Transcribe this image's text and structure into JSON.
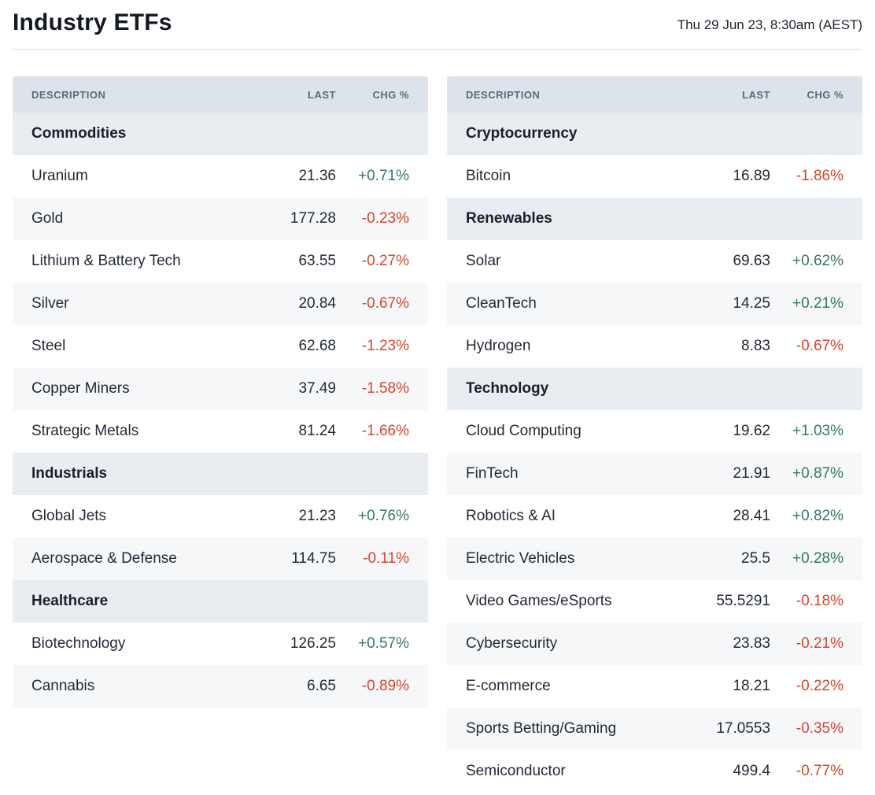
{
  "page": {
    "title": "Industry ETFs",
    "timestamp": "Thu 29 Jun 23, 8:30am (AEST)"
  },
  "colors": {
    "positive": "#347a58",
    "negative": "#d4452c",
    "header_bg": "#dde3ea",
    "section_bg": "#e9edf1",
    "row_alt_bg": "#f5f7f9"
  },
  "chart_data": [
    {
      "type": "table",
      "columns": [
        "DESCRIPTION",
        "LAST",
        "CHG %"
      ],
      "sections": [
        {
          "title": "Commodities",
          "rows": [
            {
              "description": "Uranium",
              "last": "21.36",
              "chg": "+0.71%"
            },
            {
              "description": "Gold",
              "last": "177.28",
              "chg": "-0.23%"
            },
            {
              "description": "Lithium & Battery Tech",
              "last": "63.55",
              "chg": "-0.27%"
            },
            {
              "description": "Silver",
              "last": "20.84",
              "chg": "-0.67%"
            },
            {
              "description": "Steel",
              "last": "62.68",
              "chg": "-1.23%"
            },
            {
              "description": "Copper Miners",
              "last": "37.49",
              "chg": "-1.58%"
            },
            {
              "description": "Strategic Metals",
              "last": "81.24",
              "chg": "-1.66%"
            }
          ]
        },
        {
          "title": "Industrials",
          "rows": [
            {
              "description": "Global Jets",
              "last": "21.23",
              "chg": "+0.76%"
            },
            {
              "description": "Aerospace & Defense",
              "last": "114.75",
              "chg": "-0.11%"
            }
          ]
        },
        {
          "title": "Healthcare",
          "rows": [
            {
              "description": "Biotechnology",
              "last": "126.25",
              "chg": "+0.57%"
            },
            {
              "description": "Cannabis",
              "last": "6.65",
              "chg": "-0.89%"
            }
          ]
        }
      ]
    },
    {
      "type": "table",
      "columns": [
        "DESCRIPTION",
        "LAST",
        "CHG %"
      ],
      "sections": [
        {
          "title": "Cryptocurrency",
          "rows": [
            {
              "description": "Bitcoin",
              "last": "16.89",
              "chg": "-1.86%"
            }
          ]
        },
        {
          "title": "Renewables",
          "rows": [
            {
              "description": "Solar",
              "last": "69.63",
              "chg": "+0.62%"
            },
            {
              "description": "CleanTech",
              "last": "14.25",
              "chg": "+0.21%"
            },
            {
              "description": "Hydrogen",
              "last": "8.83",
              "chg": "-0.67%"
            }
          ]
        },
        {
          "title": "Technology",
          "rows": [
            {
              "description": "Cloud Computing",
              "last": "19.62",
              "chg": "+1.03%"
            },
            {
              "description": "FinTech",
              "last": "21.91",
              "chg": "+0.87%"
            },
            {
              "description": "Robotics & AI",
              "last": "28.41",
              "chg": "+0.82%"
            },
            {
              "description": "Electric Vehicles",
              "last": "25.5",
              "chg": "+0.28%"
            },
            {
              "description": "Video Games/eSports",
              "last": "55.5291",
              "chg": "-0.18%"
            },
            {
              "description": "Cybersecurity",
              "last": "23.83",
              "chg": "-0.21%"
            },
            {
              "description": "E-commerce",
              "last": "18.21",
              "chg": "-0.22%"
            },
            {
              "description": "Sports Betting/Gaming",
              "last": "17.0553",
              "chg": "-0.35%"
            },
            {
              "description": "Semiconductor",
              "last": "499.4",
              "chg": "-0.77%"
            }
          ]
        }
      ]
    }
  ]
}
